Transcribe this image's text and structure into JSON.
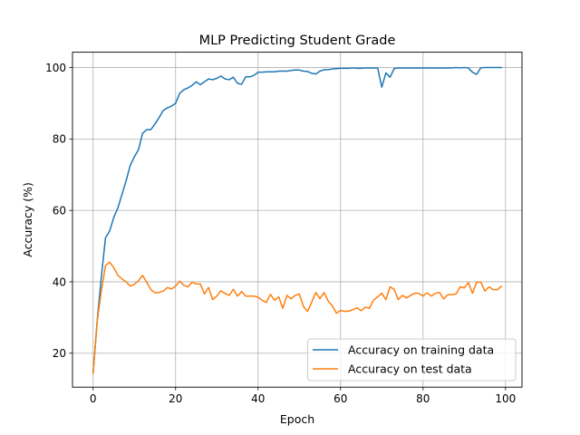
{
  "chart_data": {
    "type": "line",
    "title": "MLP Predicting Student Grade",
    "xlabel": "Epoch",
    "ylabel": "Accuracy (%)",
    "xlim": [
      -5,
      104
    ],
    "ylim": [
      10.5,
      104.3
    ],
    "xticks": [
      "0",
      "20",
      "40",
      "60",
      "80",
      "100"
    ],
    "yticks": [
      "20",
      "40",
      "60",
      "80",
      "100"
    ],
    "grid": true,
    "legend_position": "lower-right",
    "x": [
      0,
      1,
      2,
      3,
      4,
      5,
      6,
      7,
      8,
      9,
      10,
      11,
      12,
      13,
      14,
      15,
      16,
      17,
      18,
      19,
      20,
      21,
      22,
      23,
      24,
      25,
      26,
      27,
      28,
      29,
      30,
      31,
      32,
      33,
      34,
      35,
      36,
      37,
      38,
      39,
      40,
      41,
      42,
      43,
      44,
      45,
      46,
      47,
      48,
      49,
      50,
      51,
      52,
      53,
      54,
      55,
      56,
      57,
      58,
      59,
      60,
      61,
      62,
      63,
      64,
      65,
      66,
      67,
      68,
      69,
      70,
      71,
      72,
      73,
      74,
      75,
      76,
      77,
      78,
      79,
      80,
      81,
      82,
      83,
      84,
      85,
      86,
      87,
      88,
      89,
      90,
      91,
      92,
      93,
      94,
      95,
      96,
      97,
      98,
      99
    ],
    "series": [
      {
        "name": "Accuracy on training data",
        "color": "#1f77b4",
        "values": [
          14.4,
          29.2,
          41.4,
          52.3,
          54.2,
          58.0,
          60.7,
          64.5,
          68.3,
          72.6,
          75.0,
          77.0,
          81.6,
          82.6,
          82.6,
          84.2,
          86.0,
          88.0,
          88.7,
          89.2,
          90.0,
          92.8,
          93.8,
          94.3,
          95.0,
          96.0,
          95.2,
          96.0,
          96.8,
          96.6,
          97.0,
          97.6,
          96.8,
          96.6,
          97.3,
          95.6,
          95.3,
          97.4,
          97.4,
          97.8,
          98.7,
          98.7,
          98.8,
          98.8,
          98.8,
          99.0,
          99.0,
          99.0,
          99.2,
          99.3,
          99.3,
          99.0,
          98.9,
          98.4,
          98.2,
          99.0,
          99.4,
          99.4,
          99.6,
          99.7,
          99.8,
          99.8,
          99.8,
          99.9,
          99.8,
          99.8,
          99.9,
          99.9,
          99.9,
          99.9,
          94.5,
          98.5,
          97.3,
          99.7,
          99.9,
          99.9,
          99.9,
          99.9,
          99.9,
          99.9,
          99.9,
          99.9,
          99.9,
          99.9,
          99.9,
          99.9,
          99.9,
          99.9,
          100.0,
          99.9,
          100.0,
          99.9,
          98.7,
          98.1,
          99.9,
          100.0,
          100.0,
          100.0,
          100.0,
          100.0
        ]
      },
      {
        "name": "Accuracy on test data",
        "color": "#ff7f0e",
        "values": [
          14.4,
          29.0,
          37.5,
          44.5,
          45.5,
          44.0,
          41.8,
          40.8,
          40.0,
          38.8,
          39.3,
          40.3,
          41.8,
          39.9,
          37.8,
          36.9,
          37.0,
          37.4,
          38.4,
          38.0,
          38.8,
          40.2,
          39.0,
          38.6,
          39.9,
          39.4,
          39.4,
          36.6,
          38.4,
          35.0,
          36.0,
          37.5,
          36.7,
          36.2,
          37.9,
          36.0,
          37.3,
          36.0,
          36.0,
          36.0,
          35.7,
          34.8,
          34.2,
          36.5,
          34.8,
          35.8,
          32.6,
          36.2,
          35.2,
          36.2,
          36.6,
          33.1,
          31.7,
          34.3,
          37.0,
          35.3,
          37.0,
          34.6,
          33.3,
          31.2,
          32.0,
          31.7,
          31.8,
          32.2,
          32.7,
          31.9,
          32.9,
          32.6,
          34.9,
          35.8,
          36.8,
          35.0,
          38.6,
          37.9,
          35.0,
          36.2,
          35.5,
          36.2,
          36.8,
          36.8,
          36.0,
          36.9,
          36.0,
          36.8,
          37.0,
          35.2,
          36.4,
          36.4,
          36.6,
          38.6,
          38.3,
          39.8,
          36.8,
          39.9,
          39.9,
          37.4,
          38.6,
          37.8,
          37.8,
          38.7
        ]
      }
    ]
  }
}
